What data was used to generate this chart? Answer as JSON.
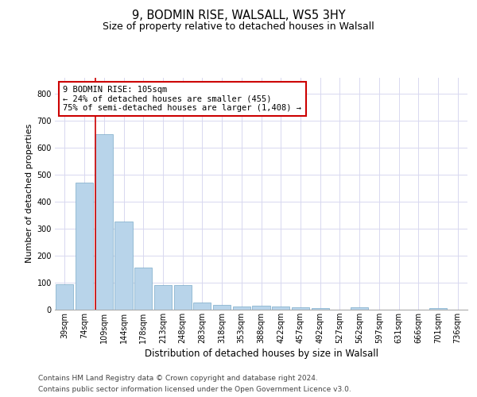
{
  "title_line1": "9, BODMIN RISE, WALSALL, WS5 3HY",
  "title_line2": "Size of property relative to detached houses in Walsall",
  "xlabel": "Distribution of detached houses by size in Walsall",
  "ylabel": "Number of detached properties",
  "categories": [
    "39sqm",
    "74sqm",
    "109sqm",
    "144sqm",
    "178sqm",
    "213sqm",
    "248sqm",
    "283sqm",
    "318sqm",
    "353sqm",
    "388sqm",
    "422sqm",
    "457sqm",
    "492sqm",
    "527sqm",
    "562sqm",
    "597sqm",
    "631sqm",
    "666sqm",
    "701sqm",
    "736sqm"
  ],
  "values": [
    95,
    470,
    650,
    325,
    157,
    90,
    90,
    25,
    18,
    13,
    16,
    13,
    10,
    7,
    0,
    8,
    0,
    0,
    0,
    7,
    0
  ],
  "bar_color": "#b8d4ea",
  "bar_edge_color": "#7aaac8",
  "red_line_index": 2,
  "annotation_text": "9 BODMIN RISE: 105sqm\n← 24% of detached houses are smaller (455)\n75% of semi-detached houses are larger (1,408) →",
  "annotation_box_facecolor": "#ffffff",
  "annotation_box_edgecolor": "#cc0000",
  "ylim_max": 860,
  "yticks": [
    0,
    100,
    200,
    300,
    400,
    500,
    600,
    700,
    800
  ],
  "grid_color": "#d8d8f0",
  "bg_color": "#ffffff",
  "footer_line1": "Contains HM Land Registry data © Crown copyright and database right 2024.",
  "footer_line2": "Contains public sector information licensed under the Open Government Licence v3.0.",
  "title_fontsize": 10.5,
  "subtitle_fontsize": 9,
  "ylabel_fontsize": 8,
  "xlabel_fontsize": 8.5,
  "tick_fontsize": 7,
  "annotation_fontsize": 7.5,
  "footer_fontsize": 6.5
}
